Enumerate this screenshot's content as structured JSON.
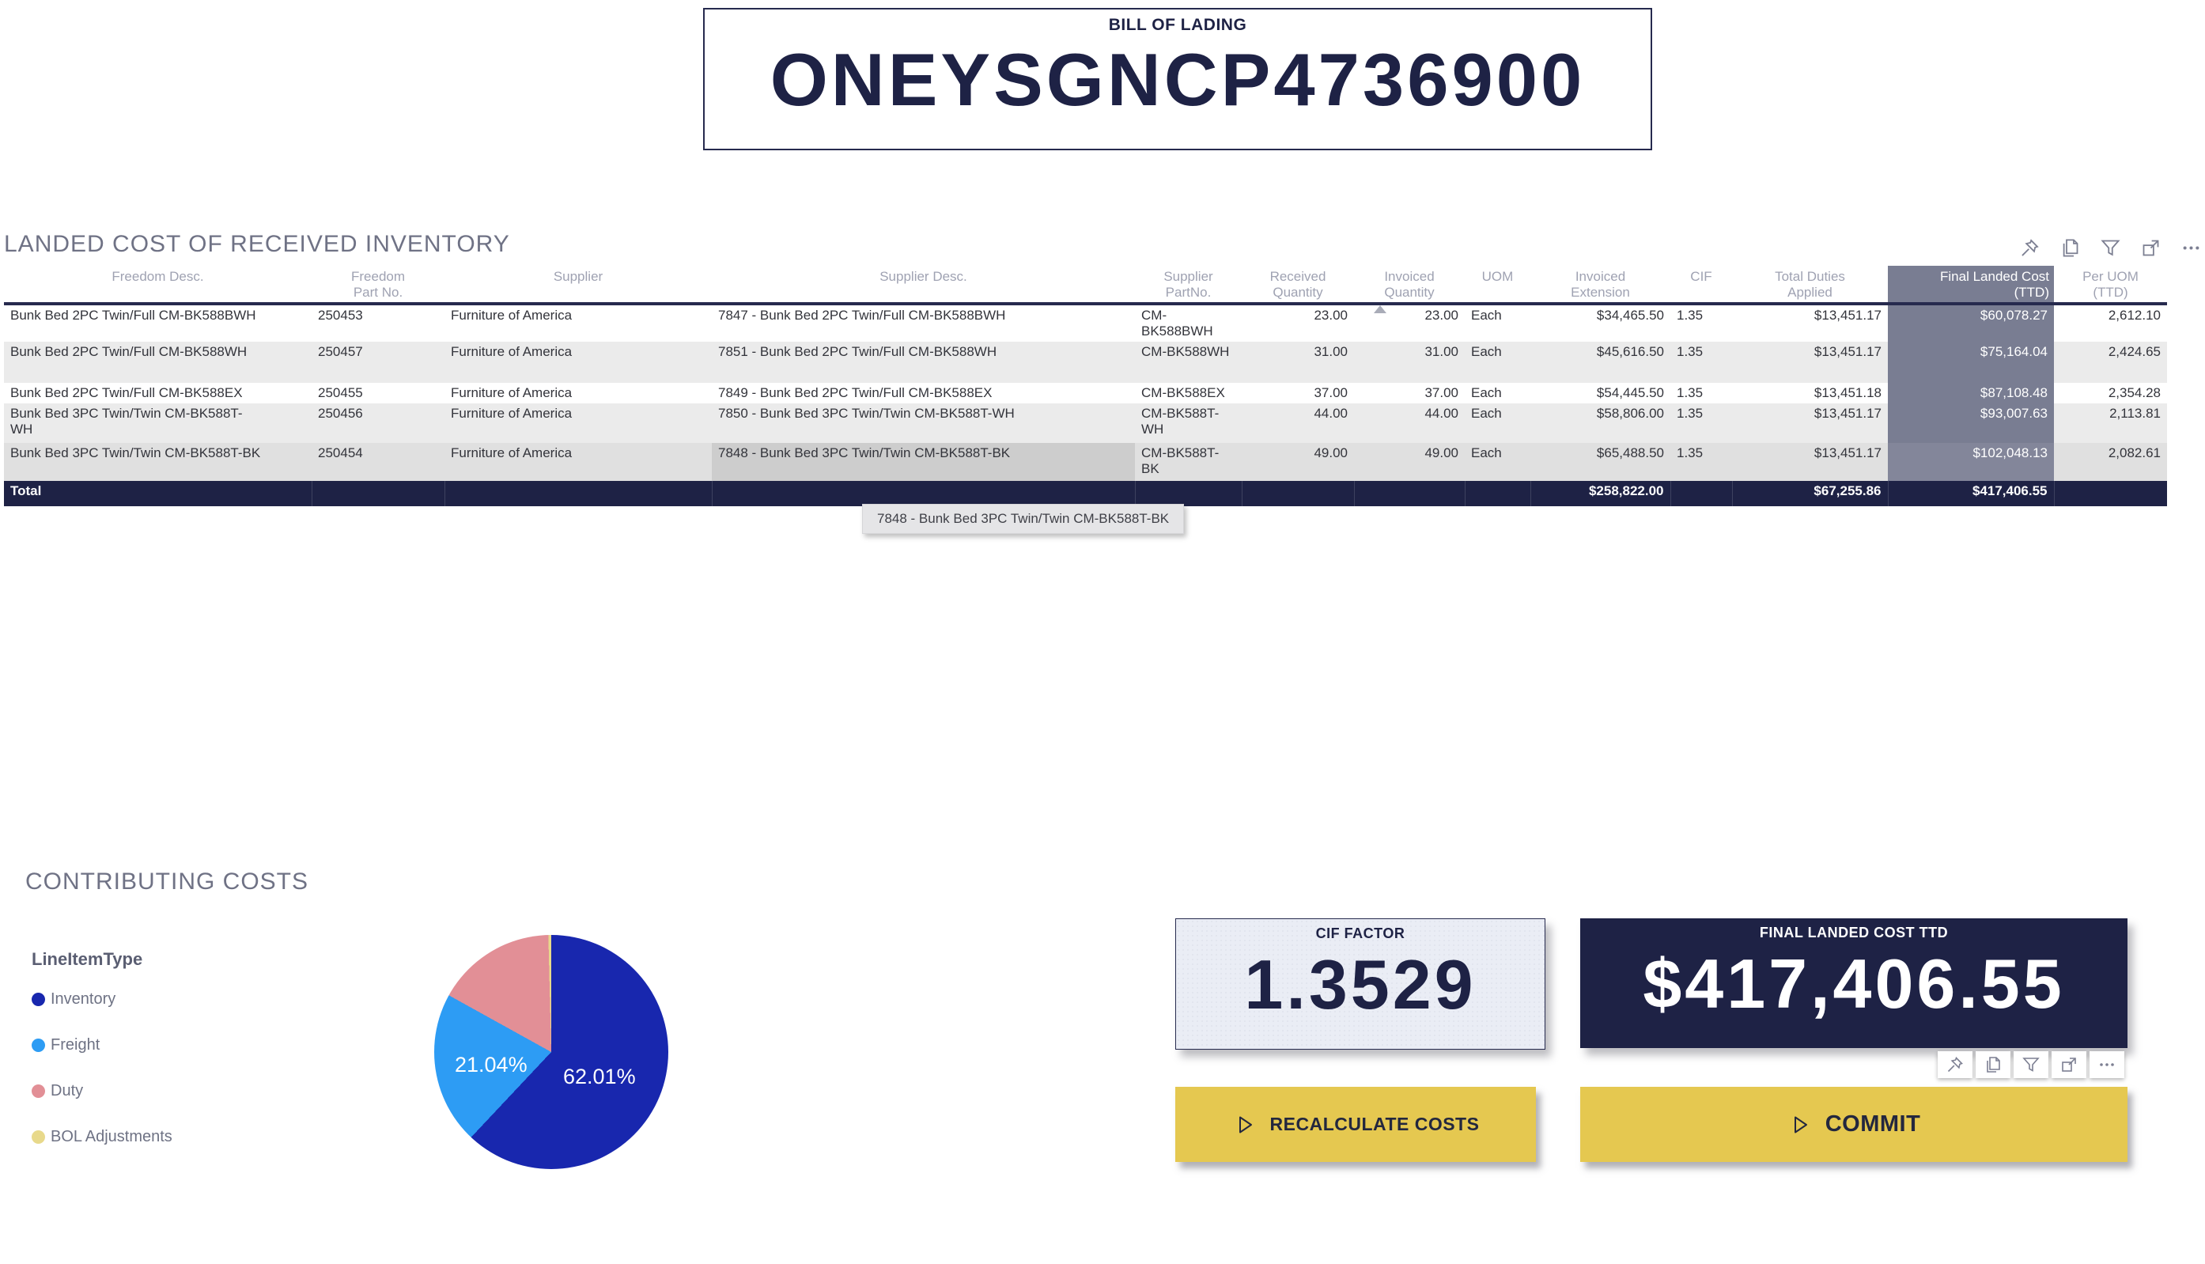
{
  "bill_of_lading": {
    "label": "BILL OF LADING",
    "number": "ONEYSGNCP4736900"
  },
  "table": {
    "title": "LANDED COST OF RECEIVED INVENTORY",
    "toolbar_icons": [
      "pin",
      "copy",
      "filter",
      "focus-mode",
      "more-options"
    ],
    "columns": [
      "Freedom Desc.",
      "Freedom Part No.",
      "Supplier",
      "Supplier Desc.",
      "Supplier PartNo.",
      "Received Quantity",
      "Invoiced Quantity",
      "UOM",
      "Invoiced Extension",
      "CIF",
      "Total Duties Applied",
      "Final Landed Cost (TTD)",
      "Per UOM (TTD)"
    ],
    "sort": {
      "column": "Invoiced Quantity",
      "direction": "ascending"
    },
    "highlighted_column": "Final Landed Cost (TTD)",
    "rows": [
      [
        "Bunk Bed 2PC Twin/Full CM-BK588BWH",
        "250453",
        "Furniture of America",
        "7847 - Bunk Bed 2PC Twin/Full CM-BK588BWH",
        "CM-BK588BWH",
        "23.00",
        "23.00",
        "Each",
        "$34,465.50",
        "1.35",
        "$13,451.17",
        "$60,078.27",
        "2,612.10"
      ],
      [
        "Bunk Bed 2PC Twin/Full CM-BK588WH",
        "250457",
        "Furniture of America",
        "7851 - Bunk Bed 2PC Twin/Full CM-BK588WH",
        "CM-BK588WH",
        "31.00",
        "31.00",
        "Each",
        "$45,616.50",
        "1.35",
        "$13,451.17",
        "$75,164.04",
        "2,424.65"
      ],
      [
        "Bunk Bed 2PC Twin/Full CM-BK588EX",
        "250455",
        "Furniture of America",
        "7849 - Bunk Bed 2PC Twin/Full CM-BK588EX",
        "CM-BK588EX",
        "37.00",
        "37.00",
        "Each",
        "$54,445.50",
        "1.35",
        "$13,451.18",
        "$87,108.48",
        "2,354.28"
      ],
      [
        "Bunk Bed 3PC Twin/Twin CM-BK588T-WH",
        "250456",
        "Furniture of America",
        "7850 - Bunk Bed 3PC Twin/Twin CM-BK588T-WH",
        "CM-BK588T-WH",
        "44.00",
        "44.00",
        "Each",
        "$58,806.00",
        "1.35",
        "$13,451.17",
        "$93,007.63",
        "2,113.81"
      ],
      [
        "Bunk Bed 3PC Twin/Twin CM-BK588T-BK",
        "250454",
        "Furniture of America",
        "7848 - Bunk Bed 3PC Twin/Twin CM-BK588T-BK",
        "CM-BK588T-BK",
        "49.00",
        "49.00",
        "Each",
        "$65,488.50",
        "1.35",
        "$13,451.17",
        "$102,048.13",
        "2,082.61"
      ]
    ],
    "hovered_row_index": 4,
    "hovered_cell_column": "Supplier Desc.",
    "total": {
      "label": "Total",
      "invoiced_extension": "$258,822.00",
      "total_duties_applied": "$67,255.86",
      "final_landed_cost": "$417,406.55"
    },
    "tooltip": "7848 - Bunk Bed 3PC Twin/Twin CM-BK588T-BK"
  },
  "contributing_costs": {
    "title": "CONTRIBUTING COSTS"
  },
  "chart_data": {
    "type": "pie",
    "title": "CONTRIBUTING COSTS",
    "legend_title": "LineItemType",
    "legend_position": "left",
    "categories": [
      "Inventory",
      "Freight",
      "Duty",
      "BOL Adjustments"
    ],
    "values": [
      62.01,
      21.04,
      16.55,
      0.4
    ],
    "unit": "percent",
    "colors": [
      "#1827AE",
      "#2D9CF4",
      "#E28F96",
      "#E8D98B"
    ],
    "start_angle_deg": 0,
    "direction": "clockwise",
    "slice_labels": {
      "inventory": "62.01%",
      "freight": "21.04%"
    }
  },
  "cards": {
    "cif": {
      "label": "CIF FACTOR",
      "value": "1.3529"
    },
    "final": {
      "label": "FINAL LANDED COST TTD",
      "value": "$417,406.55"
    }
  },
  "card_toolbar_icons": [
    "pin",
    "copy",
    "filter",
    "focus-mode",
    "more-options"
  ],
  "buttons": {
    "recalculate": "RECALCULATE COSTS",
    "commit": "COMMIT"
  },
  "colors": {
    "navy": "#1E2245",
    "accent_yellow": "#E5C850",
    "highlight_column": "#797D92"
  }
}
